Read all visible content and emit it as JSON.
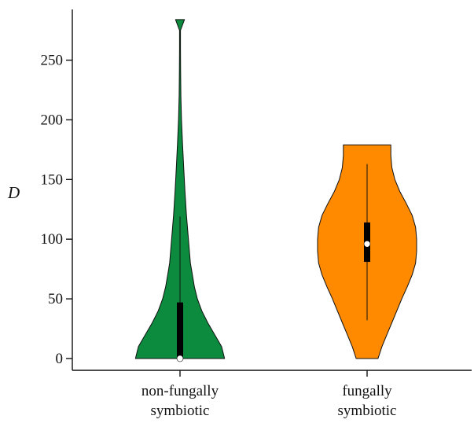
{
  "chart_data": {
    "type": "violin",
    "ylabel": "D",
    "xlabel": "",
    "ylim": [
      0,
      285
    ],
    "yticks": [
      0,
      50,
      100,
      150,
      200,
      250
    ],
    "grid": false,
    "legend": "none",
    "categories": [
      {
        "label_lines": [
          "non-fungally",
          "symbiotic"
        ]
      },
      {
        "label_lines": [
          "fungally",
          "symbiotic"
        ]
      }
    ],
    "violins": [
      {
        "color": "#0c8a3e",
        "median": 0,
        "q1": 0,
        "q3": 47,
        "whisker_low": 0,
        "whisker_high": 119,
        "min": 0,
        "max": 284,
        "density": [
          [
            0,
            0.9
          ],
          [
            10,
            0.84
          ],
          [
            20,
            0.7
          ],
          [
            30,
            0.56
          ],
          [
            40,
            0.44
          ],
          [
            50,
            0.35
          ],
          [
            60,
            0.29
          ],
          [
            70,
            0.25
          ],
          [
            80,
            0.21
          ],
          [
            100,
            0.17
          ],
          [
            120,
            0.13
          ],
          [
            140,
            0.1
          ],
          [
            160,
            0.075
          ],
          [
            180,
            0.05
          ],
          [
            200,
            0.03
          ],
          [
            220,
            0.017
          ],
          [
            240,
            0.012
          ],
          [
            260,
            0.01
          ],
          [
            275,
            0.01
          ],
          [
            284,
            0.09
          ]
        ]
      },
      {
        "color": "#ff8a00",
        "median": 96,
        "q1": 81,
        "q3": 114,
        "whisker_low": 32,
        "whisker_high": 163,
        "min": 0,
        "max": 179,
        "density": [
          [
            0,
            0.22
          ],
          [
            10,
            0.3
          ],
          [
            20,
            0.4
          ],
          [
            30,
            0.5
          ],
          [
            40,
            0.6
          ],
          [
            50,
            0.7
          ],
          [
            60,
            0.81
          ],
          [
            70,
            0.91
          ],
          [
            80,
            0.98
          ],
          [
            90,
            1.0
          ],
          [
            100,
            1.0
          ],
          [
            110,
            0.98
          ],
          [
            120,
            0.91
          ],
          [
            130,
            0.79
          ],
          [
            140,
            0.66
          ],
          [
            150,
            0.56
          ],
          [
            160,
            0.5
          ],
          [
            170,
            0.48
          ],
          [
            179,
            0.48
          ]
        ]
      }
    ]
  }
}
